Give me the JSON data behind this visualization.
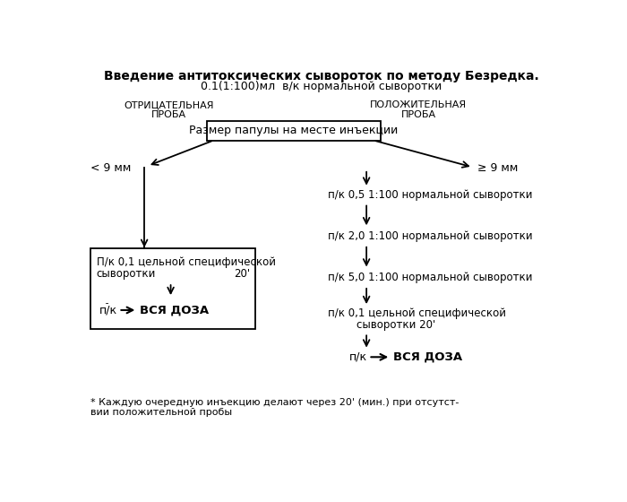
{
  "title_line1": "Введение антитоксических сывороток по методу Безредка.",
  "title_line2": "0.1(1:100)мл  в/к нормальной сыворотки",
  "bg_color": "#ffffff",
  "text_color": "#000000",
  "box_main": "Размер папулы на месте инъекции",
  "label_neg": "ОТРИЦАТЕЛЬНАЯ\nПРОБА",
  "label_pos": "ПОЛОЖИТЕЛЬНАЯ\nПРОБА",
  "label_lt9": "< 9 мм",
  "label_ge9": "≥ 9 мм",
  "right_steps": [
    "п/к 0,5 1:100 нормальной сыворотки",
    "п/к 2,0 1:100 нормальной сыворотки",
    "п/к 5,0 1:100 нормальной сыворотки"
  ],
  "right_step4_line1": "п/к 0,1 цельной специфической",
  "right_step4_line2": "сыворотки 20'",
  "left_box_line1": "П/к 0,1 цельной специфической",
  "left_box_line2": "сыворотки",
  "left_box_time": "20'",
  "left_pk": "п/к",
  "left_vся": " ВСЯ ДОЗА",
  "right_pk": "п/к",
  "right_vsya": " ВСЯ ДОЗА",
  "footnote_line1": "* Каждую очередную инъекцию делают через 20' (мин.) при отсутст-",
  "footnote_line2": "вии положительной пробы"
}
